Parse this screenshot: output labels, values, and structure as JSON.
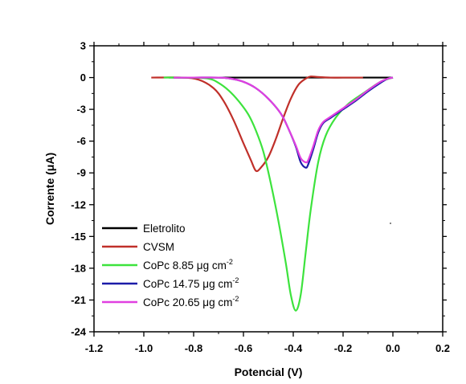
{
  "chart_data": {
    "type": "line",
    "xlabel": "Potencial (V)",
    "ylabel": "Corrente (μA)",
    "xlim": [
      -1.2,
      0.2
    ],
    "ylim": [
      -24,
      3
    ],
    "xticks": [
      "-1.2",
      "-1.0",
      "-0.8",
      "-0.6",
      "-0.4",
      "-0.2",
      "0.0",
      "0.2"
    ],
    "yticks": [
      "3",
      "0",
      "-3",
      "-6",
      "-9",
      "-12",
      "-15",
      "-18",
      "-21",
      "-24"
    ],
    "grid": false,
    "legend_position": "bottom-left",
    "series": [
      {
        "name": "Eletrolito",
        "color": "#000000",
        "x": [
          -0.9,
          -0.8,
          -0.6,
          -0.4,
          -0.2,
          -0.1,
          0.0
        ],
        "y": [
          0,
          0,
          0,
          0,
          0,
          0,
          0
        ]
      },
      {
        "name": "CVSM",
        "color": "#c0302a",
        "x": [
          -0.97,
          -0.85,
          -0.78,
          -0.72,
          -0.68,
          -0.64,
          -0.6,
          -0.57,
          -0.55,
          -0.53,
          -0.5,
          -0.47,
          -0.44,
          -0.41,
          -0.38,
          -0.35,
          -0.33,
          -0.3,
          -0.25,
          -0.2,
          -0.12
        ],
        "y": [
          0,
          0,
          -0.2,
          -1.0,
          -2.2,
          -4.0,
          -6.2,
          -7.8,
          -8.8,
          -8.5,
          -7.5,
          -5.8,
          -3.8,
          -2.0,
          -0.7,
          -0.1,
          0.1,
          0.05,
          0,
          0,
          0
        ]
      },
      {
        "name": "CoPc 8.85",
        "color": "#3de33d",
        "x": [
          -0.92,
          -0.82,
          -0.74,
          -0.7,
          -0.66,
          -0.62,
          -0.58,
          -0.55,
          -0.52,
          -0.49,
          -0.46,
          -0.43,
          -0.41,
          -0.39,
          -0.37,
          -0.35,
          -0.33,
          -0.3,
          -0.27,
          -0.23,
          -0.18,
          -0.12,
          -0.05,
          0.0
        ],
        "y": [
          0,
          0,
          -0.1,
          -0.5,
          -1.2,
          -2.2,
          -3.5,
          -5.0,
          -7.0,
          -10.0,
          -13.5,
          -17.5,
          -20.5,
          -22.0,
          -20.5,
          -16.5,
          -12.5,
          -8.0,
          -5.5,
          -3.8,
          -2.5,
          -1.5,
          -0.4,
          0
        ]
      },
      {
        "name": "CoPc 14.75",
        "color": "#1c1ca8",
        "x": [
          -0.88,
          -0.8,
          -0.7,
          -0.65,
          -0.6,
          -0.55,
          -0.5,
          -0.45,
          -0.42,
          -0.39,
          -0.37,
          -0.35,
          -0.34,
          -0.32,
          -0.3,
          -0.28,
          -0.25,
          -0.2,
          -0.15,
          -0.1,
          -0.05,
          -0.02,
          0.0
        ],
        "y": [
          0,
          0,
          0,
          -0.1,
          -0.4,
          -1.0,
          -2.0,
          -3.4,
          -4.8,
          -6.5,
          -8.0,
          -8.5,
          -8.2,
          -6.8,
          -5.2,
          -4.3,
          -3.8,
          -3.0,
          -2.2,
          -1.3,
          -0.5,
          -0.1,
          0
        ]
      },
      {
        "name": "CoPc 20.65",
        "color": "#e040e0",
        "x": [
          -0.88,
          -0.8,
          -0.7,
          -0.65,
          -0.6,
          -0.55,
          -0.5,
          -0.45,
          -0.42,
          -0.39,
          -0.37,
          -0.35,
          -0.34,
          -0.32,
          -0.3,
          -0.28,
          -0.25,
          -0.2,
          -0.15,
          -0.1,
          -0.05,
          -0.02,
          0.0
        ],
        "y": [
          0,
          0,
          0,
          -0.1,
          -0.4,
          -1.0,
          -2.0,
          -3.4,
          -4.8,
          -6.4,
          -7.6,
          -8.0,
          -7.8,
          -6.5,
          -5.0,
          -4.2,
          -3.7,
          -2.9,
          -2.1,
          -1.2,
          -0.4,
          -0.1,
          0
        ]
      }
    ],
    "legend": [
      {
        "text": "Eletrolito",
        "sup": "",
        "color": "#000000"
      },
      {
        "text": "CVSM",
        "sup": "",
        "color": "#c0302a"
      },
      {
        "text": "CoPc 8.85 μg cm",
        "sup": "-2",
        "color": "#3de33d"
      },
      {
        "text": "CoPc 14.75 μg cm",
        "sup": "-2",
        "color": "#1c1ca8"
      },
      {
        "text": "CoPc 20.65 μg cm",
        "sup": "-2",
        "color": "#e040e0"
      }
    ]
  }
}
